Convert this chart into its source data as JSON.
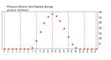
{
  "title_line1": "Milwaukee Weather Solar Radiation Average",
  "title_line2": "per Hour  (24 Hours)",
  "hours": [
    0,
    1,
    2,
    3,
    4,
    5,
    6,
    7,
    8,
    9,
    10,
    11,
    12,
    13,
    14,
    15,
    16,
    17,
    18,
    19,
    20,
    21,
    22,
    23
  ],
  "solar_values": [
    0,
    0,
    0,
    0,
    0,
    0,
    2,
    18,
    80,
    165,
    250,
    310,
    335,
    315,
    270,
    200,
    120,
    50,
    12,
    2,
    0,
    0,
    0,
    0
  ],
  "ylim": [
    0,
    350
  ],
  "yticks": [
    50,
    100,
    150,
    200,
    250,
    300,
    350
  ],
  "dot_color": "#ff0000",
  "bg_color": "#ffffff",
  "grid_color": "#999999",
  "title_color": "#000000",
  "tick_label_color": "#000000",
  "dot_size": 1.5,
  "vline_positions": [
    0,
    4,
    8,
    12,
    16,
    20,
    23
  ]
}
